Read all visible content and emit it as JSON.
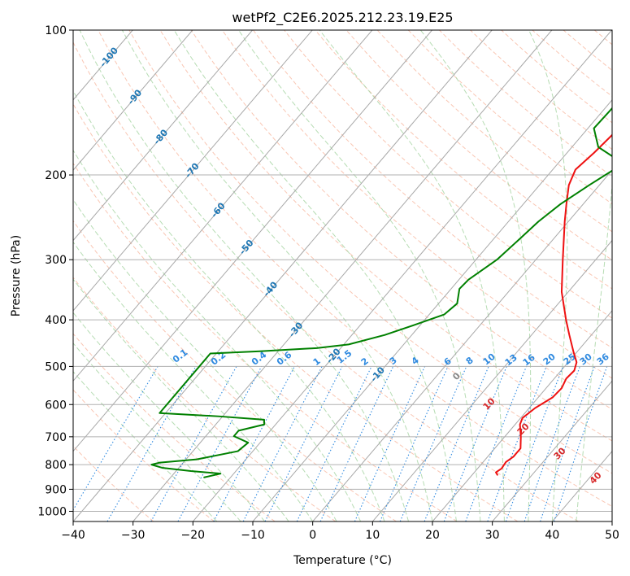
{
  "chart_data": {
    "type": "skew-t",
    "title": "wetPf2_C2E6.2025.212.23.19.E25",
    "xlabel": "Temperature (°C)",
    "ylabel": "Pressure (hPa)",
    "xlim": [
      -40,
      50
    ],
    "ylim": [
      1050,
      100
    ],
    "y_scale": "log",
    "x_ticks": [
      -40,
      -30,
      -20,
      -10,
      0,
      10,
      20,
      30,
      40,
      50
    ],
    "x_tick_labels": [
      "−40",
      "−30",
      "−20",
      "−10",
      "0",
      "10",
      "20",
      "30",
      "40",
      "50"
    ],
    "y_ticks": [
      1000,
      900,
      800,
      700,
      600,
      500,
      400,
      300,
      200,
      100
    ],
    "y_tick_labels": [
      "1000",
      "900",
      "800",
      "700",
      "600",
      "500",
      "400",
      "300",
      "200",
      "100"
    ],
    "grid": true,
    "colors": {
      "temperature": "#ee1111",
      "dewpoint": "#008000",
      "isotherm": "#a8a8a8",
      "dry_adiabat": "#f7b39a",
      "moist_adiabat": "#a9d6a6",
      "mixing_ratio": "#2f8ae0",
      "isotherm_label": "#1f77b4",
      "mixing_label": "#2f8ae0",
      "moist_label": "#d62728",
      "zero_label": "#888888"
    },
    "series": [
      {
        "name": "Temperature",
        "points": [
          {
            "p": 840,
            "t": 24.2
          },
          {
            "p": 830,
            "t": 23.6
          },
          {
            "p": 815,
            "t": 24.0
          },
          {
            "p": 790,
            "t": 23.8
          },
          {
            "p": 770,
            "t": 24.3
          },
          {
            "p": 740,
            "t": 24.3
          },
          {
            "p": 700,
            "t": 22.7
          },
          {
            "p": 660,
            "t": 20.8
          },
          {
            "p": 640,
            "t": 20.3
          },
          {
            "p": 610,
            "t": 21.0
          },
          {
            "p": 580,
            "t": 22.4
          },
          {
            "p": 555,
            "t": 22.6
          },
          {
            "p": 530,
            "t": 22.0
          },
          {
            "p": 510,
            "t": 22.2
          },
          {
            "p": 490,
            "t": 21.4
          },
          {
            "p": 465,
            "t": 19.3
          },
          {
            "p": 430,
            "t": 16.3
          },
          {
            "p": 400,
            "t": 13.6
          },
          {
            "p": 350,
            "t": 8.9
          },
          {
            "p": 300,
            "t": 4.5
          },
          {
            "p": 250,
            "t": -0.6
          },
          {
            "p": 230,
            "t": -2.8
          },
          {
            "p": 210,
            "t": -5.1
          },
          {
            "p": 195,
            "t": -6.2
          },
          {
            "p": 180,
            "t": -5.5
          },
          {
            "p": 165,
            "t": -5.0
          },
          {
            "p": 150,
            "t": -5.3
          },
          {
            "p": 140,
            "t": -5.2
          },
          {
            "p": 130,
            "t": -3.7
          },
          {
            "p": 120,
            "t": -1.6
          },
          {
            "p": 110,
            "t": 0.3
          },
          {
            "p": 100,
            "t": 1.3
          }
        ]
      },
      {
        "name": "Dewpoint",
        "points": [
          {
            "p": 850,
            "t": -24.4
          },
          {
            "p": 835,
            "t": -22.2
          },
          {
            "p": 825,
            "t": -27.5
          },
          {
            "p": 812,
            "t": -32.8
          },
          {
            "p": 800,
            "t": -35.0
          },
          {
            "p": 792,
            "t": -33.9
          },
          {
            "p": 780,
            "t": -28.2
          },
          {
            "p": 750,
            "t": -22.5
          },
          {
            "p": 720,
            "t": -22.0
          },
          {
            "p": 698,
            "t": -25.3
          },
          {
            "p": 680,
            "t": -25.3
          },
          {
            "p": 660,
            "t": -21.9
          },
          {
            "p": 645,
            "t": -22.6
          },
          {
            "p": 635,
            "t": -30.5
          },
          {
            "p": 625,
            "t": -41.0
          },
          {
            "p": 470,
            "t": -41.0
          },
          {
            "p": 465,
            "t": -33.0
          },
          {
            "p": 458,
            "t": -24.0
          },
          {
            "p": 450,
            "t": -19.2
          },
          {
            "p": 430,
            "t": -14.5
          },
          {
            "p": 410,
            "t": -11.0
          },
          {
            "p": 390,
            "t": -7.5
          },
          {
            "p": 370,
            "t": -6.9
          },
          {
            "p": 345,
            "t": -8.6
          },
          {
            "p": 330,
            "t": -8.4
          },
          {
            "p": 300,
            "t": -6.5
          },
          {
            "p": 270,
            "t": -5.6
          },
          {
            "p": 250,
            "t": -5.0
          },
          {
            "p": 230,
            "t": -3.8
          },
          {
            "p": 210,
            "t": -1.7
          },
          {
            "p": 195,
            "t": 0.2
          },
          {
            "p": 185,
            "t": -1.0
          },
          {
            "p": 175,
            "t": -5.6
          },
          {
            "p": 160,
            "t": -9.0
          },
          {
            "p": 145,
            "t": -8.8
          },
          {
            "p": 133,
            "t": -6.1
          },
          {
            "p": 124,
            "t": -5.0
          },
          {
            "p": 115,
            "t": 0.1
          },
          {
            "p": 108,
            "t": 0.2
          },
          {
            "p": 100,
            "t": 1.1
          }
        ]
      }
    ],
    "isotherm_labels": [
      "-100",
      "-90",
      "-80",
      "-70",
      "-60",
      "-50",
      "-40",
      "-30",
      "-20",
      "-10"
    ],
    "mixing_ratio_labels": [
      "0.1",
      "0.2",
      "0.4",
      "0.6",
      "1",
      "1.5",
      "2",
      "3",
      "4",
      "6",
      "8",
      "10",
      "13",
      "16",
      "20",
      "25",
      "30",
      "36"
    ],
    "moist_adiabat_labels": [
      "0",
      "10",
      "20",
      "30",
      "40"
    ]
  }
}
